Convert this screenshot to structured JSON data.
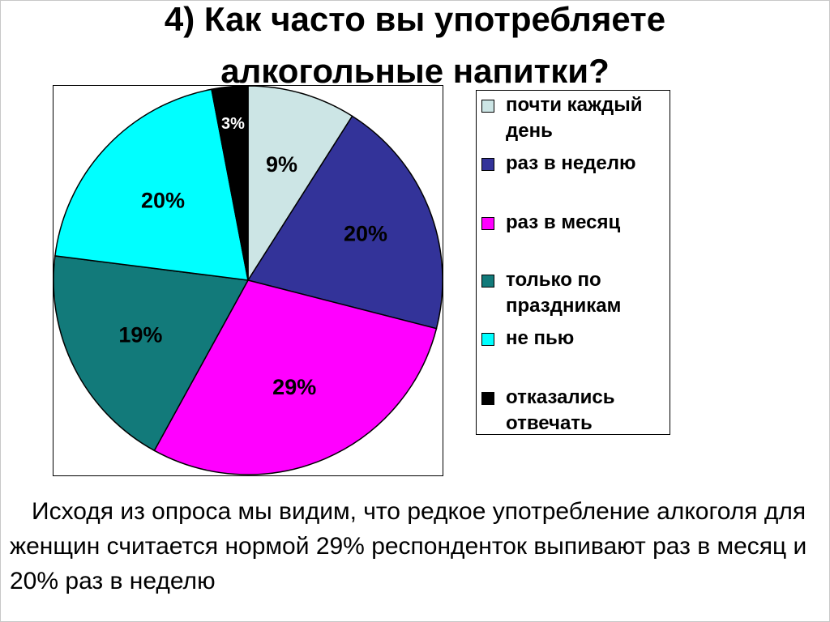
{
  "title": {
    "line1": "4) Как часто вы употребляете",
    "line2": "алкогольные напитки?"
  },
  "chart_data": {
    "type": "pie",
    "title": "4) Как часто вы употребляете алкогольные напитки?",
    "slices": [
      {
        "label": "почти каждый день",
        "value": 9,
        "display": "9%",
        "color": "#cce5e5"
      },
      {
        "label": "раз в неделю",
        "value": 20,
        "display": "20%",
        "color": "#333399"
      },
      {
        "label": "раз в месяц",
        "value": 29,
        "display": "29%",
        "color": "#ff00ff"
      },
      {
        "label": "только по праздникам",
        "value": 19,
        "display": "19%",
        "color": "#127a7a"
      },
      {
        "label": "не пью",
        "value": 20,
        "display": "20%",
        "color": "#00ffff"
      },
      {
        "label": "отказались отвечать",
        "value": 3,
        "display": "3%",
        "color": "#000000"
      }
    ],
    "legend_position": "right"
  },
  "legend": {
    "items": [
      {
        "label": "почти каждый день",
        "color": "#cce5e5"
      },
      {
        "label": " раз в неделю",
        "color": "#333399"
      },
      {
        "label": "раз в месяц",
        "color": "#ff00ff"
      },
      {
        "label": "только по праздникам",
        "color": "#127a7a"
      },
      {
        "label": " не пью",
        "color": "#00ffff"
      },
      {
        "label": "отказались отвечать",
        "color": "#000000"
      }
    ]
  },
  "conclusion": "Исходя из опроса мы видим, что редкое употребление алкоголя для женщин считается нормой 29% респонденток выпивают раз в месяц и 20% раз в неделю"
}
